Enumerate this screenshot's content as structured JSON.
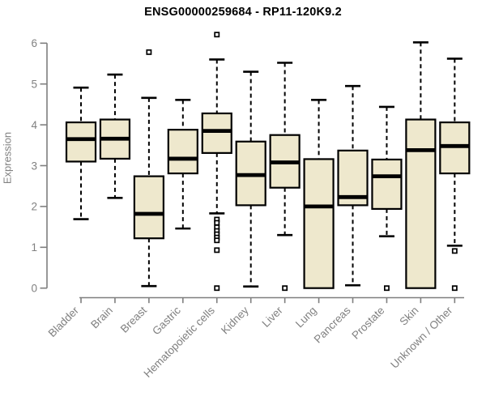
{
  "chart_data": {
    "type": "box",
    "title": "ENSG00000259684 - RP11-120K9.2",
    "ylabel": "Expression",
    "xlabel": "",
    "ylim": [
      0,
      6
    ],
    "yticks": [
      0,
      1,
      2,
      3,
      4,
      5,
      6
    ],
    "grid": false,
    "legend": "none",
    "x_tick_rotation": -45,
    "categories": [
      "Bladder",
      "Brain",
      "Breast",
      "Gastric",
      "Hematopoietic cells",
      "Kidney",
      "Liver",
      "Lung",
      "Pancreas",
      "Prostate",
      "Skin",
      "Unknown / Other"
    ],
    "series": [
      {
        "label": "Bladder",
        "whisker_low": 1.69,
        "q1": 3.1,
        "median": 3.65,
        "q3": 4.06,
        "whisker_high": 4.91,
        "outliers": []
      },
      {
        "label": "Brain",
        "whisker_low": 2.21,
        "q1": 3.17,
        "median": 3.66,
        "q3": 4.13,
        "whisker_high": 5.23,
        "outliers": []
      },
      {
        "label": "Breast",
        "whisker_low": 0.05,
        "q1": 1.22,
        "median": 1.82,
        "q3": 2.74,
        "whisker_high": 4.66,
        "outliers": [
          5.78
        ]
      },
      {
        "label": "Gastric",
        "whisker_low": 1.46,
        "q1": 2.81,
        "median": 3.17,
        "q3": 3.88,
        "whisker_high": 4.61,
        "outliers": []
      },
      {
        "label": "Hematopoietic cells",
        "whisker_low": 1.83,
        "q1": 3.31,
        "median": 3.85,
        "q3": 4.28,
        "whisker_high": 5.6,
        "outliers": [
          6.21,
          1.68,
          1.6,
          1.49,
          1.4,
          1.32,
          1.24,
          1.17,
          0.93,
          0.0
        ]
      },
      {
        "label": "Kidney",
        "whisker_low": 0.04,
        "q1": 2.03,
        "median": 2.77,
        "q3": 3.59,
        "whisker_high": 5.3,
        "outliers": []
      },
      {
        "label": "Liver",
        "whisker_low": 1.3,
        "q1": 2.46,
        "median": 3.08,
        "q3": 3.75,
        "whisker_high": 5.52,
        "outliers": [
          0.0
        ]
      },
      {
        "label": "Lung",
        "whisker_low": 0.0,
        "q1": 0.0,
        "median": 2.0,
        "q3": 3.16,
        "whisker_high": 4.61,
        "outliers": []
      },
      {
        "label": "Pancreas",
        "whisker_low": 0.07,
        "q1": 2.03,
        "median": 2.23,
        "q3": 3.37,
        "whisker_high": 4.95,
        "outliers": []
      },
      {
        "label": "Prostate",
        "whisker_low": 1.27,
        "q1": 1.94,
        "median": 2.74,
        "q3": 3.15,
        "whisker_high": 4.44,
        "outliers": [
          0.0
        ]
      },
      {
        "label": "Skin",
        "whisker_low": 0.0,
        "q1": 0.0,
        "median": 3.38,
        "q3": 4.13,
        "whisker_high": 6.02,
        "outliers": []
      },
      {
        "label": "Unknown / Other",
        "whisker_low": 1.04,
        "q1": 2.81,
        "median": 3.48,
        "q3": 4.06,
        "whisker_high": 5.62,
        "outliers": [
          0.91,
          0.0
        ]
      }
    ],
    "colors": {
      "box_fill": "#EEE8CD",
      "box_border": "#000000",
      "median": "#000000",
      "whisker": "#000000",
      "outlier_border": "#000000",
      "outlier_fill": "#ffffff",
      "axis": "#7f7f7f",
      "tick_text": "#808080",
      "title_text": "#000000"
    }
  }
}
